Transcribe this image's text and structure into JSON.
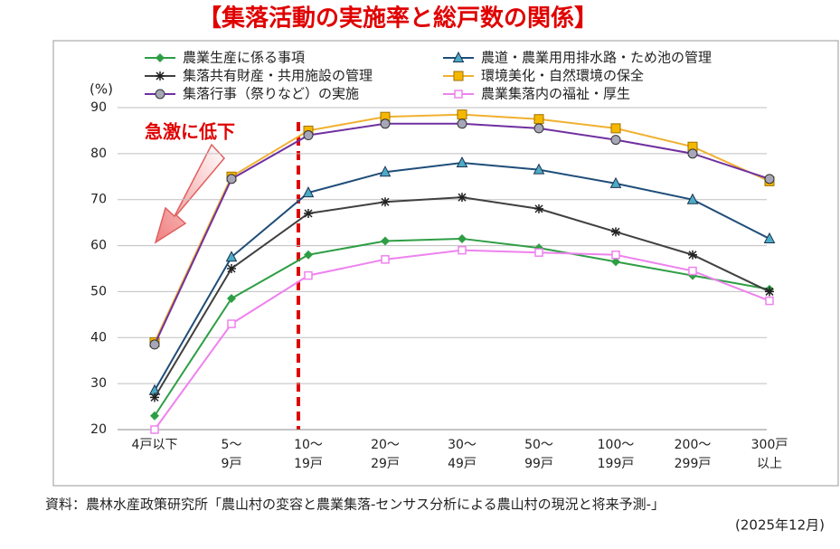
{
  "chart_data": {
    "type": "line",
    "title": "【集落活動の実施率と総戸数の関係】",
    "y_label": "(%)",
    "annotation": "急激に低下",
    "source": "資料：農林水産政策研究所「農山村の変容と農業集落-センサス分析による農山村の現況と将来予測-」",
    "source_date": "(2025年12月)",
    "categories": [
      [
        "4戸以下"
      ],
      [
        "5〜",
        "9戸"
      ],
      [
        "10〜",
        "19戸"
      ],
      [
        "20〜",
        "29戸"
      ],
      [
        "30〜",
        "49戸"
      ],
      [
        "50〜",
        "99戸"
      ],
      [
        "100〜",
        "199戸"
      ],
      [
        "200〜",
        "299戸"
      ],
      [
        "300戸",
        "以上"
      ]
    ],
    "ylim": [
      20,
      90
    ],
    "yticks": [
      20,
      30,
      40,
      50,
      60,
      70,
      80,
      90
    ],
    "grid": true,
    "series": [
      {
        "name": "農業生産に係る事項",
        "color": "#2e9e44",
        "marker": "diamond",
        "marker_color": "#2e9e44",
        "values": [
          23,
          48.5,
          58,
          61,
          61.5,
          59.5,
          56.5,
          53.5,
          50.5
        ]
      },
      {
        "name": "農道・農業用用排水路・ため池の管理",
        "color": "#1f4e79",
        "marker": "triangle",
        "marker_color": "#4bacc6",
        "values": [
          28.5,
          57.5,
          71.5,
          76,
          78,
          76.5,
          73.5,
          70,
          61.5
        ]
      },
      {
        "name": "集落共有財産・共用施設の管理",
        "color": "#404040",
        "marker": "star",
        "marker_color": "#222222",
        "values": [
          27,
          55,
          67,
          69.5,
          70.5,
          68,
          63,
          58,
          50
        ]
      },
      {
        "name": "環境美化・自然環境の保全",
        "color": "#f0b030",
        "marker": "square",
        "marker_color": "#f5b800",
        "values": [
          39,
          75,
          85,
          88,
          88.5,
          87.5,
          85.5,
          81.5,
          74
        ]
      },
      {
        "name": "集落行事（祭りなど）の実施",
        "color": "#7030a0",
        "marker": "circle",
        "marker_color": "#a6a6b8",
        "values": [
          38.5,
          74.5,
          84,
          86.5,
          86.5,
          85.5,
          83,
          80,
          74.5
        ]
      },
      {
        "name": "農業集落内の福祉・厚生",
        "color": "#ee82ee",
        "marker": "opensquare",
        "marker_color": "#ee82ee",
        "values": [
          20,
          43,
          53.5,
          57,
          59,
          58.5,
          58,
          54.5,
          48
        ]
      }
    ]
  }
}
